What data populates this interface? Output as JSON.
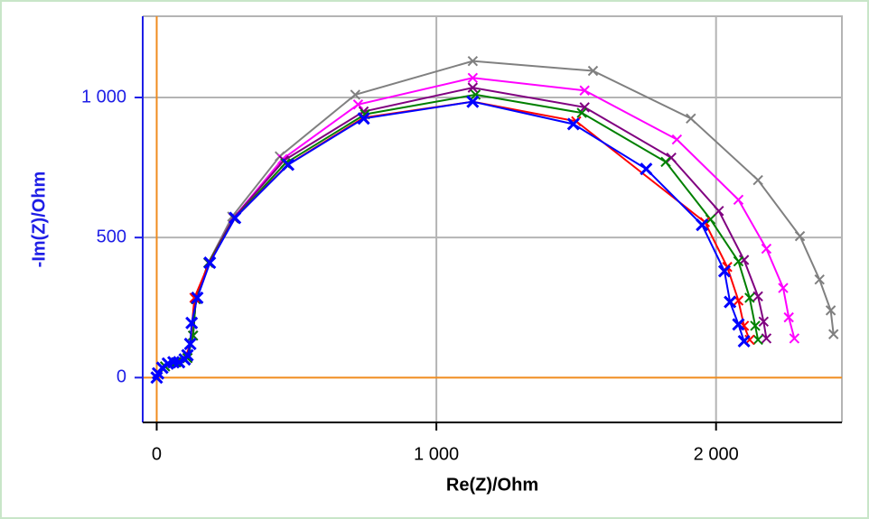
{
  "chart_data": {
    "type": "line",
    "x_label": "Re(Z)/Ohm",
    "y_label": "-Im(Z)/Ohm",
    "xlim": [
      -50,
      2450
    ],
    "ylim": [
      -160,
      1290
    ],
    "xticks": [
      0,
      {
        "value": 1000,
        "label": "1 000"
      },
      {
        "value": 2000,
        "label": "2 000"
      }
    ],
    "yticks": [
      0,
      500,
      {
        "value": 1000,
        "label": "1 000"
      }
    ],
    "grid": true,
    "grid_color": "#b4b4b4",
    "zero_line_color": "#f08c1e",
    "y_axis_color": "#1e1ee6",
    "x_axis_color": "#000000",
    "series": [
      {
        "color": "#808080",
        "x": [
          0,
          30,
          70,
          110,
          130,
          140,
          185,
          270,
          440,
          710,
          1130,
          1560,
          1910,
          2150,
          2300,
          2370,
          2410,
          2420
        ],
        "y": [
          0,
          40,
          55,
          70,
          150,
          280,
          410,
          575,
          790,
          1010,
          1130,
          1095,
          925,
          705,
          505,
          350,
          240,
          155
        ]
      },
      {
        "color": "#ff00ff",
        "x": [
          0,
          30,
          70,
          110,
          130,
          140,
          185,
          275,
          450,
          720,
          1130,
          1530,
          1860,
          2080,
          2180,
          2240,
          2260,
          2280
        ],
        "y": [
          0,
          40,
          55,
          70,
          150,
          280,
          410,
          570,
          780,
          975,
          1070,
          1025,
          850,
          635,
          460,
          320,
          215,
          140
        ]
      },
      {
        "color": "#800080",
        "x": [
          0,
          30,
          70,
          110,
          130,
          140,
          185,
          275,
          455,
          740,
          1130,
          1530,
          1840,
          2010,
          2100,
          2150,
          2170,
          2180
        ],
        "y": [
          0,
          40,
          55,
          70,
          150,
          280,
          410,
          570,
          775,
          950,
          1035,
          965,
          785,
          595,
          420,
          290,
          200,
          140
        ]
      },
      {
        "color": "#008000",
        "x": [
          0,
          30,
          70,
          110,
          130,
          140,
          185,
          278,
          460,
          745,
          1140,
          1520,
          1820,
          1980,
          2080,
          2120,
          2140,
          2150
        ],
        "y": [
          0,
          40,
          55,
          70,
          150,
          280,
          410,
          568,
          765,
          940,
          1010,
          945,
          770,
          565,
          415,
          285,
          185,
          135
        ]
      },
      {
        "color": "#ff0000",
        "x": [
          0,
          20,
          60,
          100,
          120,
          135,
          188,
          280,
          468,
          740,
          1130,
          1500,
          1960,
          2040,
          2080,
          2100,
          2120
        ],
        "y": [
          0,
          35,
          55,
          65,
          120,
          285,
          410,
          570,
          760,
          928,
          985,
          915,
          555,
          395,
          275,
          185,
          135
        ]
      },
      {
        "color": "#0000ff",
        "x": [
          0,
          5,
          20,
          40,
          60,
          80,
          100,
          110,
          120,
          125,
          145,
          190,
          280,
          470,
          740,
          1130,
          1490,
          1750,
          1950,
          2030,
          2050,
          2080,
          2100
        ],
        "y": [
          0,
          15,
          35,
          50,
          55,
          55,
          65,
          80,
          120,
          195,
          285,
          410,
          570,
          760,
          925,
          985,
          905,
          745,
          545,
          380,
          270,
          190,
          130
        ]
      }
    ]
  }
}
